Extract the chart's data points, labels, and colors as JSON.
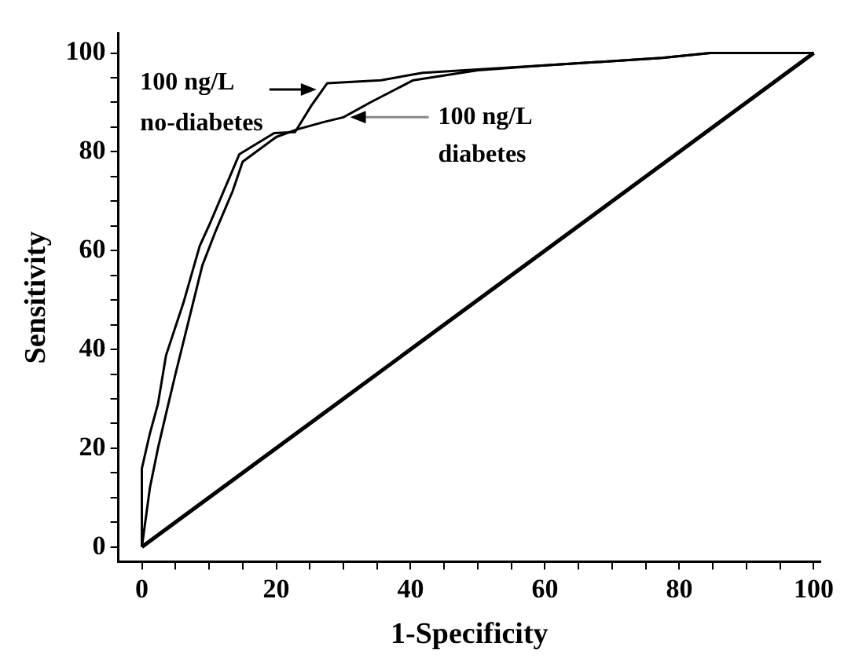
{
  "chart_data": {
    "type": "line",
    "xlabel": "1-Specificity",
    "ylabel": "Sensitivity",
    "xlim": [
      -3.5,
      101
    ],
    "ylim": [
      -3,
      104
    ],
    "xticks": [
      0,
      {
        "value": 5,
        "label": null
      },
      {
        "value": 10,
        "label": null
      },
      {
        "value": 15,
        "label": null
      },
      20,
      {
        "value": 25,
        "label": null
      },
      {
        "value": 30,
        "label": null
      },
      {
        "value": 35,
        "label": null
      },
      40,
      {
        "value": 45,
        "label": null
      },
      {
        "value": 50,
        "label": null
      },
      {
        "value": 55,
        "label": null
      },
      60,
      {
        "value": 65,
        "label": null
      },
      {
        "value": 70,
        "label": null
      },
      {
        "value": 75,
        "label": null
      },
      80,
      {
        "value": 85,
        "label": null
      },
      {
        "value": 90,
        "label": null
      },
      {
        "value": 95,
        "label": null
      },
      100
    ],
    "yticks": [
      0,
      {
        "value": 5,
        "label": null
      },
      {
        "value": 10,
        "label": null
      },
      {
        "value": 15,
        "label": null
      },
      20,
      {
        "value": 25,
        "label": null
      },
      {
        "value": 30,
        "label": null
      },
      {
        "value": 35,
        "label": null
      },
      40,
      {
        "value": 45,
        "label": null
      },
      {
        "value": 50,
        "label": null
      },
      {
        "value": 55,
        "label": null
      },
      60,
      {
        "value": 65,
        "label": null
      },
      {
        "value": 70,
        "label": null
      },
      {
        "value": 75,
        "label": null
      },
      80,
      {
        "value": 85,
        "label": null
      },
      {
        "value": 90,
        "label": null
      },
      {
        "value": 95,
        "label": null
      },
      100
    ],
    "grid": false,
    "legend": false,
    "marker": "none",
    "series": [
      {
        "color": "#000000",
        "x": [
          0,
          0,
          1.2,
          2.4,
          3.6,
          6.2,
          8.6,
          10.2,
          13.1,
          14.5,
          19.7,
          22.8,
          25.2,
          27.6,
          35.6,
          41.8,
          60,
          77.4,
          84.6,
          100
        ],
        "values": [
          0,
          15.9,
          23,
          29,
          38.8,
          49.5,
          60.9,
          65.7,
          75,
          79.5,
          83.8,
          84,
          89.3,
          93.9,
          94.5,
          96,
          97.5,
          99,
          100,
          100
        ]
      },
      {
        "color": "#000000",
        "x": [
          0,
          1.2,
          2.4,
          3.6,
          5,
          7,
          9,
          11,
          13.5,
          15,
          20,
          23,
          27,
          30,
          34,
          40.4,
          50,
          60,
          77.4,
          84.6,
          100
        ],
        "values": [
          0,
          12,
          20,
          27,
          35,
          46,
          57,
          64,
          72,
          78,
          83,
          84.5,
          86,
          87,
          90,
          94.5,
          96.5,
          97.5,
          99,
          100,
          100
        ]
      },
      {
        "color": "#000000",
        "x": [
          0,
          100
        ],
        "values": [
          0,
          100
        ]
      }
    ],
    "annotations": [
      {
        "text": "100 ng/L\nno-diabetes",
        "x": 26,
        "y": 92.6
      },
      {
        "text": "100 ng/L\ndiabetes",
        "x": 31,
        "y": 87
      }
    ]
  }
}
